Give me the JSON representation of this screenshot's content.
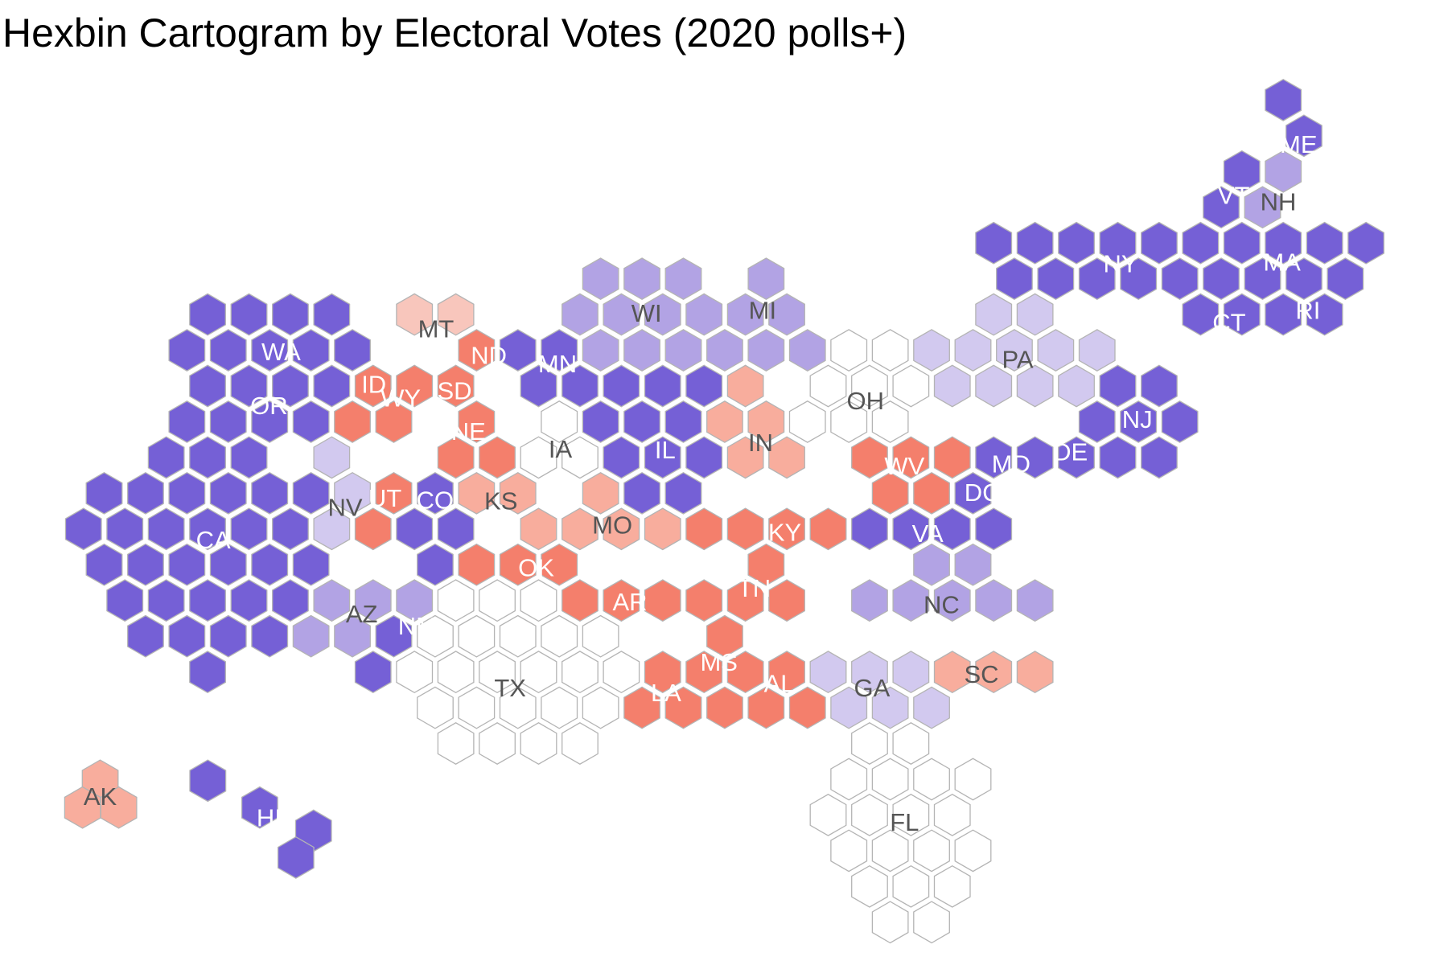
{
  "title": "Hexbin Cartogram by Electoral Votes (2020 polls+)",
  "category_colors": {
    "solid-d": "#7560d6",
    "likely-d": "#b2a3e4",
    "lean-d": "#d2c9ef",
    "tossup": "#ffffff",
    "lean-r": "#f8c6bc",
    "likely-r": "#f8ad9d",
    "solid-r": "#f47f6c"
  },
  "grid_line_color": "#b4b4b4",
  "states": [
    {
      "abbr": "WA",
      "category": "solid-d"
    },
    {
      "abbr": "OR",
      "category": "solid-d"
    },
    {
      "abbr": "CA",
      "category": "solid-d"
    },
    {
      "abbr": "NV",
      "category": "lean-d"
    },
    {
      "abbr": "ID",
      "category": "solid-r"
    },
    {
      "abbr": "MT",
      "category": "lean-r"
    },
    {
      "abbr": "WY",
      "category": "solid-r"
    },
    {
      "abbr": "UT",
      "category": "solid-r"
    },
    {
      "abbr": "CO",
      "category": "solid-d"
    },
    {
      "abbr": "AZ",
      "category": "likely-d"
    },
    {
      "abbr": "NM",
      "category": "solid-d"
    },
    {
      "abbr": "ND",
      "category": "solid-r"
    },
    {
      "abbr": "SD",
      "category": "solid-r"
    },
    {
      "abbr": "NE",
      "category": "solid-r"
    },
    {
      "abbr": "KS",
      "category": "likely-r"
    },
    {
      "abbr": "OK",
      "category": "solid-r"
    },
    {
      "abbr": "TX",
      "category": "tossup"
    },
    {
      "abbr": "MN",
      "category": "solid-d"
    },
    {
      "abbr": "IA",
      "category": "tossup"
    },
    {
      "abbr": "MO",
      "category": "likely-r"
    },
    {
      "abbr": "AR",
      "category": "solid-r"
    },
    {
      "abbr": "LA",
      "category": "solid-r"
    },
    {
      "abbr": "WI",
      "category": "likely-d"
    },
    {
      "abbr": "IL",
      "category": "solid-d"
    },
    {
      "abbr": "MI",
      "category": "likely-d"
    },
    {
      "abbr": "IN",
      "category": "likely-r"
    },
    {
      "abbr": "OH",
      "category": "tossup"
    },
    {
      "abbr": "KY",
      "category": "solid-r"
    },
    {
      "abbr": "TN",
      "category": "solid-r"
    },
    {
      "abbr": "MS",
      "category": "solid-r"
    },
    {
      "abbr": "AL",
      "category": "solid-r"
    },
    {
      "abbr": "GA",
      "category": "lean-d"
    },
    {
      "abbr": "FL",
      "category": "tossup"
    },
    {
      "abbr": "SC",
      "category": "likely-r"
    },
    {
      "abbr": "NC",
      "category": "likely-d"
    },
    {
      "abbr": "WV",
      "category": "solid-r"
    },
    {
      "abbr": "VA",
      "category": "solid-d"
    },
    {
      "abbr": "PA",
      "category": "lean-d"
    },
    {
      "abbr": "MD",
      "category": "solid-d"
    },
    {
      "abbr": "DC",
      "category": "solid-d"
    },
    {
      "abbr": "DE",
      "category": "solid-d"
    },
    {
      "abbr": "NJ",
      "category": "solid-d"
    },
    {
      "abbr": "NY",
      "category": "solid-d"
    },
    {
      "abbr": "CT",
      "category": "solid-d"
    },
    {
      "abbr": "RI",
      "category": "solid-d"
    },
    {
      "abbr": "MA",
      "category": "solid-d"
    },
    {
      "abbr": "VT",
      "category": "solid-d"
    },
    {
      "abbr": "NH",
      "category": "likely-d"
    },
    {
      "abbr": "ME",
      "category": "solid-d"
    },
    {
      "abbr": "AK",
      "category": "likely-r"
    },
    {
      "abbr": "HI",
      "category": "solid-d"
    }
  ]
}
